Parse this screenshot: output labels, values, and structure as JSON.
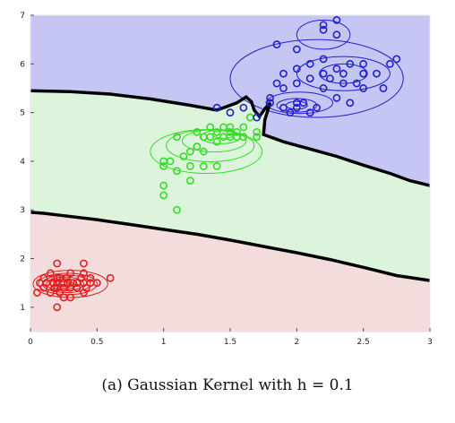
{
  "caption": "(a) Gaussian Kernel with h = 0.1",
  "chart_data": {
    "type": "scatter",
    "title": "",
    "xlabel": "",
    "ylabel": "",
    "xlim": [
      0,
      3
    ],
    "ylim": [
      0.5,
      7
    ],
    "xticks": [
      {
        "v": 0,
        "label": "0"
      },
      {
        "v": 0.5,
        "label": "0.5"
      },
      {
        "v": 1,
        "label": "1"
      },
      {
        "v": 1.5,
        "label": "1.5"
      },
      {
        "v": 2,
        "label": "2"
      },
      {
        "v": 2.5,
        "label": "2.5"
      },
      {
        "v": 3,
        "label": "3"
      }
    ],
    "yticks": [
      {
        "v": 1,
        "label": "1"
      },
      {
        "v": 2,
        "label": "2"
      },
      {
        "v": 3,
        "label": "3"
      },
      {
        "v": 4,
        "label": "4"
      },
      {
        "v": 5,
        "label": "5"
      },
      {
        "v": 6,
        "label": "6"
      },
      {
        "v": 7,
        "label": "7"
      }
    ],
    "regions": [
      {
        "class": "red",
        "fill": "#f2dcdc"
      },
      {
        "class": "green",
        "fill": "#dcf4dc"
      },
      {
        "class": "blue",
        "fill": "#c6c6f4"
      }
    ],
    "boundaries": [
      {
        "name": "red-green",
        "color": "#000000",
        "points": [
          [
            0,
            2.95
          ],
          [
            0.1,
            2.93
          ],
          [
            0.25,
            2.88
          ],
          [
            0.5,
            2.8
          ],
          [
            0.75,
            2.7
          ],
          [
            1.0,
            2.6
          ],
          [
            1.25,
            2.5
          ],
          [
            1.5,
            2.38
          ],
          [
            1.75,
            2.25
          ],
          [
            2.0,
            2.12
          ],
          [
            2.25,
            1.98
          ],
          [
            2.5,
            1.82
          ],
          [
            2.75,
            1.65
          ],
          [
            3.0,
            1.55
          ]
        ]
      },
      {
        "name": "green-blue",
        "color": "#000000",
        "points": [
          [
            0,
            5.45
          ],
          [
            0.3,
            5.43
          ],
          [
            0.6,
            5.38
          ],
          [
            0.9,
            5.28
          ],
          [
            1.2,
            5.15
          ],
          [
            1.4,
            5.05
          ],
          [
            1.55,
            5.2
          ],
          [
            1.62,
            5.32
          ],
          [
            1.66,
            5.22
          ],
          [
            1.68,
            5.05
          ],
          [
            1.72,
            4.92
          ],
          [
            1.76,
            5.08
          ],
          [
            1.8,
            5.2
          ],
          [
            1.76,
            4.85
          ],
          [
            1.75,
            4.55
          ],
          [
            1.9,
            4.4
          ],
          [
            2.1,
            4.25
          ],
          [
            2.3,
            4.1
          ],
          [
            2.5,
            3.92
          ],
          [
            2.7,
            3.75
          ],
          [
            2.85,
            3.6
          ],
          [
            3.0,
            3.5
          ]
        ]
      }
    ],
    "series": [
      {
        "color": "#e31e1e",
        "x": [
          0.05,
          0.07,
          0.1,
          0.1,
          0.12,
          0.15,
          0.15,
          0.17,
          0.18,
          0.2,
          0.2,
          0.2,
          0.2,
          0.2,
          0.22,
          0.22,
          0.25,
          0.25,
          0.25,
          0.27,
          0.28,
          0.3,
          0.3,
          0.3,
          0.32,
          0.35,
          0.35,
          0.38,
          0.4,
          0.4,
          0.4,
          0.4,
          0.42,
          0.45,
          0.45,
          0.5,
          0.6
        ],
        "y": [
          1.3,
          1.5,
          1.6,
          1.4,
          1.5,
          1.7,
          1.3,
          1.5,
          1.4,
          1.6,
          1.5,
          1.4,
          1.9,
          1.0,
          1.6,
          1.3,
          1.5,
          1.4,
          1.2,
          1.6,
          1.5,
          1.4,
          1.7,
          1.2,
          1.5,
          1.5,
          1.4,
          1.6,
          1.5,
          1.7,
          1.9,
          1.3,
          1.4,
          1.5,
          1.6,
          1.5,
          1.6
        ],
        "contours": [
          {
            "cx": 0.25,
            "cy": 1.48,
            "rx": 0.04,
            "ry": 0.05
          },
          {
            "cx": 0.25,
            "cy": 1.48,
            "rx": 0.07,
            "ry": 0.08
          },
          {
            "cx": 0.25,
            "cy": 1.48,
            "rx": 0.1,
            "ry": 0.11
          },
          {
            "cx": 0.26,
            "cy": 1.48,
            "rx": 0.14,
            "ry": 0.14
          },
          {
            "cx": 0.27,
            "cy": 1.48,
            "rx": 0.18,
            "ry": 0.18
          },
          {
            "cx": 0.28,
            "cy": 1.48,
            "rx": 0.22,
            "ry": 0.22
          },
          {
            "cx": 0.3,
            "cy": 1.48,
            "rx": 0.28,
            "ry": 0.28
          }
        ]
      },
      {
        "color": "#33dd22",
        "x": [
          1.0,
          1.0,
          1.0,
          1.0,
          1.05,
          1.1,
          1.1,
          1.1,
          1.15,
          1.2,
          1.2,
          1.2,
          1.25,
          1.25,
          1.3,
          1.3,
          1.3,
          1.35,
          1.35,
          1.4,
          1.4,
          1.4,
          1.45,
          1.45,
          1.5,
          1.5,
          1.5,
          1.55,
          1.55,
          1.6,
          1.6,
          1.65,
          1.7,
          1.7
        ],
        "y": [
          3.3,
          3.5,
          3.9,
          4.0,
          4.0,
          3.0,
          4.5,
          3.8,
          4.1,
          3.6,
          3.9,
          4.2,
          4.3,
          4.6,
          3.9,
          4.2,
          4.5,
          4.5,
          4.7,
          3.9,
          4.4,
          4.6,
          4.5,
          4.7,
          4.5,
          4.6,
          4.7,
          4.5,
          4.6,
          4.5,
          4.7,
          4.9,
          4.6,
          4.5
        ],
        "contours": [
          {
            "cx": 1.45,
            "cy": 4.55,
            "rx": 0.08,
            "ry": 0.08
          },
          {
            "cx": 1.43,
            "cy": 4.5,
            "rx": 0.15,
            "ry": 0.14
          },
          {
            "cx": 1.38,
            "cy": 4.42,
            "rx": 0.24,
            "ry": 0.23
          },
          {
            "cx": 1.35,
            "cy": 4.32,
            "rx": 0.33,
            "ry": 0.33
          },
          {
            "cx": 1.32,
            "cy": 4.2,
            "rx": 0.42,
            "ry": 0.45
          }
        ]
      },
      {
        "color": "#2020cc",
        "x": [
          1.4,
          1.5,
          1.6,
          1.7,
          1.8,
          1.85,
          1.9,
          1.9,
          1.95,
          2.0,
          2.0,
          2.0,
          2.0,
          2.05,
          2.1,
          2.1,
          2.1,
          2.15,
          2.2,
          2.2,
          2.2,
          2.2,
          2.25,
          2.3,
          2.3,
          2.3,
          2.35,
          2.35,
          2.4,
          2.4,
          2.45,
          2.5,
          2.5,
          2.6,
          2.65,
          2.7,
          2.75,
          2.0,
          2.3,
          2.5,
          1.8,
          1.85,
          1.9,
          2.2
        ],
        "y": [
          5.1,
          5.0,
          5.1,
          4.9,
          5.3,
          6.4,
          5.8,
          5.1,
          5.0,
          5.1,
          5.6,
          5.9,
          6.3,
          5.2,
          5.0,
          5.7,
          6.0,
          5.1,
          6.1,
          5.8,
          6.7,
          5.5,
          5.7,
          6.6,
          5.9,
          5.3,
          5.6,
          5.8,
          6.0,
          5.2,
          5.6,
          6.0,
          5.5,
          5.8,
          5.5,
          6.0,
          6.1,
          5.2,
          6.9,
          5.8,
          5.2,
          5.6,
          5.5,
          6.8
        ],
        "contours": [
          {
            "cx": 2.0,
            "cy": 5.15,
            "rx": 0.08,
            "ry": 0.08
          },
          {
            "cx": 2.0,
            "cy": 5.15,
            "rx": 0.15,
            "ry": 0.14
          },
          {
            "cx": 2.02,
            "cy": 5.2,
            "rx": 0.25,
            "ry": 0.22
          },
          {
            "cx": 2.35,
            "cy": 5.8,
            "rx": 0.18,
            "ry": 0.2
          },
          {
            "cx": 2.35,
            "cy": 5.8,
            "rx": 0.35,
            "ry": 0.35
          },
          {
            "cx": 2.15,
            "cy": 5.7,
            "rx": 0.65,
            "ry": 0.8
          },
          {
            "cx": 2.2,
            "cy": 6.6,
            "rx": 0.2,
            "ry": 0.3
          }
        ]
      }
    ]
  }
}
